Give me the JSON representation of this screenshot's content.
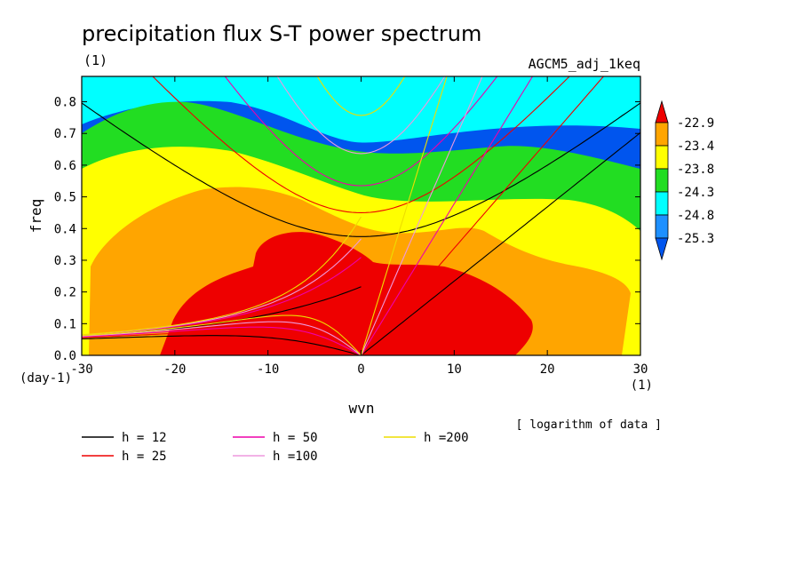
{
  "chart_data": {
    "type": "heatmap",
    "title": "precipitation flux S-T power spectrum",
    "subtitle_left": "(1)",
    "subtitle_right": "AGCM5_adj_1keq",
    "xlabel": "wvn",
    "ylabel": "freq",
    "x_unit": "(1)",
    "y_unit": "(day-1)",
    "note": "[ logarithm of data ]",
    "xlim": [
      -30,
      30
    ],
    "ylim": [
      0,
      0.88
    ],
    "xticks": [
      "-30",
      "-20",
      "-10",
      "0",
      "10",
      "20",
      "30"
    ],
    "yticks": [
      "0.0",
      "0.1",
      "0.2",
      "0.3",
      "0.4",
      "0.5",
      "0.6",
      "0.7",
      "0.8"
    ],
    "colorbar": {
      "levels": [
        "-22.9",
        "-23.4",
        "-23.8",
        "-24.3",
        "-24.8",
        "-25.3"
      ],
      "colors": [
        "#ee0000",
        "#ffa500",
        "#ffff00",
        "#22dd22",
        "#00ffff",
        "#1e90ff",
        "#0055ee"
      ]
    },
    "dispersion_curves": [
      {
        "label": "h = 12",
        "h": 12,
        "color": "#000000"
      },
      {
        "label": "h = 25",
        "h": 25,
        "color": "#ee0000"
      },
      {
        "label": "h = 50",
        "h": 50,
        "color": "#ee00aa"
      },
      {
        "label": "h =100",
        "h": 100,
        "color": "#ee99dd"
      },
      {
        "label": "h =200",
        "h": 200,
        "color": "#eedd00"
      }
    ]
  }
}
